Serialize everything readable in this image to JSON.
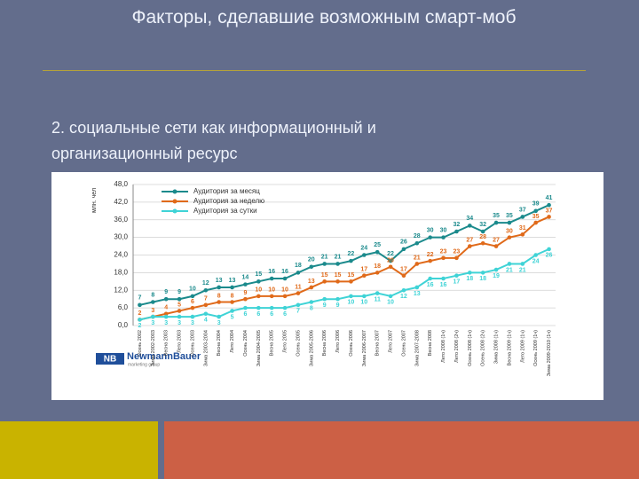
{
  "slide": {
    "title": "Факторы, сделавшие возможным смарт-моб",
    "bullet_lines": [
      "2.  социальные сети как информационный и",
      "организационный ресурс"
    ]
  },
  "logo": {
    "mark": "NB",
    "name": "NewmannBauer",
    "tagline": "marketing group"
  },
  "chart_data": {
    "type": "line",
    "y_label": "млн. чел",
    "categories": [
      "Осень 2002",
      "Зима 2002-2003",
      "Весна 2003",
      "Лето 2003",
      "Осень 2003",
      "Зима 2003-2004",
      "Весна 2004",
      "Лето 2004",
      "Осень 2004",
      "Зима 2004-2005",
      "Весна 2005",
      "Лето 2005",
      "Осень 2005",
      "Зима 2005-2006",
      "Весна 2006",
      "Лето 2006",
      "Осень 2006",
      "Зима 2006-2007",
      "Весна 2007",
      "Лето 2007",
      "Осень 2007",
      "Зима 2007-2008",
      "Весна 2008",
      "Лето 2008 (1ч)",
      "Лето 2008 (2ч)",
      "Осень 2008 (1ч)",
      "Осень 2008 (2ч)",
      "Зима 2008 (1ч)",
      "Весна 2009 (1ч)",
      "Лето 2009 (1ч)",
      "Осень 2009 (1ч)",
      "Зима 2009-2010 (1ч)"
    ],
    "series": [
      {
        "name": "Аудитория за месяц",
        "color": "#1b8a8c",
        "values": [
          7,
          8,
          9,
          9,
          10,
          12,
          13,
          13,
          14,
          15,
          16,
          16,
          18,
          20,
          21,
          21,
          22,
          24,
          25,
          22,
          26,
          28,
          30,
          30,
          32,
          34,
          32,
          35,
          35,
          37,
          39,
          41
        ]
      },
      {
        "name": "Аудитория за неделю",
        "color": "#e06a1a",
        "values": [
          2,
          3,
          4,
          5,
          6,
          7,
          8,
          8,
          9,
          10,
          10,
          10,
          11,
          13,
          15,
          15,
          15,
          17,
          18,
          20,
          17,
          21,
          22,
          23,
          23,
          27,
          28,
          27,
          30,
          31,
          35,
          37
        ]
      },
      {
        "name": "Аудитория за сутки",
        "color": "#3fd3d6",
        "values": [
          2,
          3,
          3,
          3,
          3,
          4,
          3,
          5,
          6,
          6,
          6,
          6,
          7,
          8,
          9,
          9,
          10,
          10,
          11,
          10,
          12,
          13,
          16,
          16,
          17,
          18,
          18,
          19,
          21,
          21,
          24,
          26
        ]
      }
    ],
    "ylim": [
      0,
      48
    ],
    "yticks": [
      {
        "value": 0,
        "label": "0,0"
      },
      {
        "value": 6,
        "label": "6,0"
      },
      {
        "value": 12,
        "label": "12,0"
      },
      {
        "value": 18,
        "label": "18,0"
      },
      {
        "value": 24,
        "label": "24,0"
      },
      {
        "value": 30,
        "label": "30,0"
      },
      {
        "value": 36,
        "label": "36,0"
      },
      {
        "value": 42,
        "label": "42,0"
      },
      {
        "value": 48,
        "label": "48,0"
      }
    ],
    "grid": true
  }
}
